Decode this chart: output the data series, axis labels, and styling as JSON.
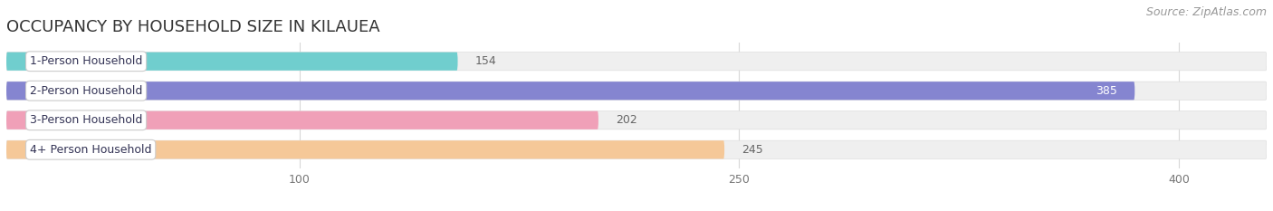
{
  "title": "OCCUPANCY BY HOUSEHOLD SIZE IN KILAUEA",
  "source": "Source: ZipAtlas.com",
  "categories": [
    "1-Person Household",
    "2-Person Household",
    "3-Person Household",
    "4+ Person Household"
  ],
  "values": [
    154,
    385,
    202,
    245
  ],
  "bar_colors": [
    "#70cece",
    "#8585d0",
    "#f0a0b8",
    "#f5c898"
  ],
  "background_color": "#ffffff",
  "bar_bg_color": "#efefef",
  "grid_color": "#d8d8d8",
  "xlim_max": 430,
  "xticks": [
    100,
    250,
    400
  ],
  "title_fontsize": 13,
  "source_fontsize": 9,
  "bar_label_fontsize": 9,
  "category_fontsize": 9,
  "bar_height": 0.62,
  "bar_gap": 0.18
}
